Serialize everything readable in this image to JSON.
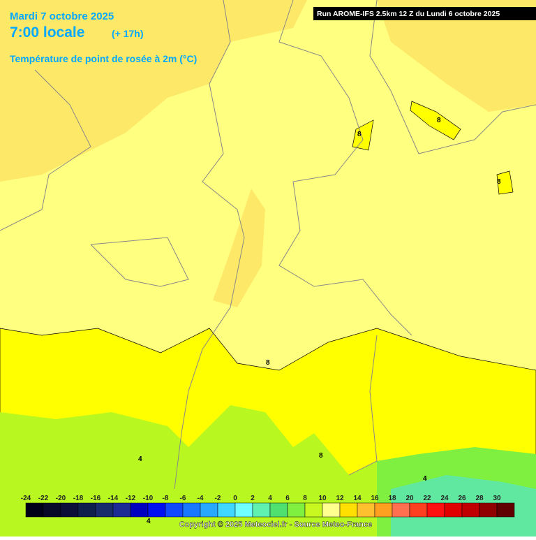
{
  "header": {
    "date": "Mardi 7 octobre 2025",
    "time": "7:00 locale",
    "lead": "(+ 17h)",
    "variable": "Température de point de rosée à 2m (°C)"
  },
  "run": "Run AROME-IFS 2.5km 12 Z du Lundi 6 octobre 2025",
  "contour_labels": [
    "8",
    "8",
    "8",
    "8",
    "8",
    "4",
    "4",
    "4"
  ],
  "legend": {
    "labels": [
      -24,
      -22,
      -20,
      -18,
      -16,
      -14,
      -12,
      -10,
      -8,
      -6,
      -4,
      -2,
      0,
      2,
      4,
      6,
      8,
      10,
      12,
      14,
      16,
      18,
      20,
      22,
      24,
      26,
      28,
      30
    ],
    "colors": [
      "#000018",
      "#080828",
      "#0c1038",
      "#10204c",
      "#182c6c",
      "#1c2c94",
      "#0000c0",
      "#0010f0",
      "#1048ff",
      "#1878ff",
      "#28a8ff",
      "#40d8ff",
      "#70ffff",
      "#60f0b0",
      "#50e070",
      "#80f040",
      "#c8f820",
      "#ffff90",
      "#ffe000",
      "#ffc030",
      "#ffa020",
      "#ff7050",
      "#ff4020",
      "#ff1010",
      "#e00000",
      "#c00000",
      "#900000",
      "#600000"
    ]
  },
  "copyright": "Copyright © 2025 Meteociel.fr - Source Meteo-France"
}
